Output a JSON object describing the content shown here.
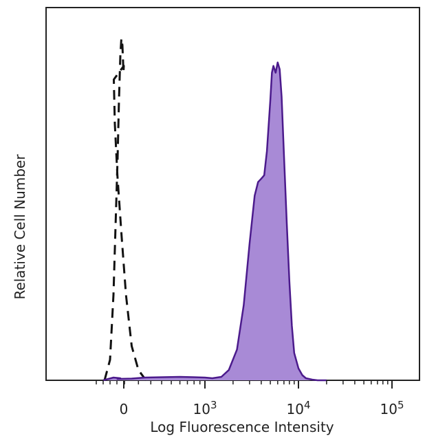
{
  "chart_data": {
    "type": "area",
    "xlabel": "Log Fluorescence Intensity",
    "ylabel": "Relative Cell Number",
    "x_scale": "biexponential",
    "xlim": [
      -500,
      200000
    ],
    "ylim": [
      0,
      1
    ],
    "grid": false,
    "legend": "none",
    "x_ticks": [
      {
        "value": 0,
        "label": "0",
        "exp": ""
      },
      {
        "value": 1000,
        "label": "10",
        "exp": "3"
      },
      {
        "value": 10000,
        "label": "10",
        "exp": "4"
      },
      {
        "value": 100000,
        "label": "10",
        "exp": "5"
      }
    ],
    "series": [
      {
        "style": "dashed",
        "color": "#111111",
        "fill": "none",
        "x": [
          -280,
          -200,
          -150,
          -120,
          -90,
          -70,
          -50,
          -35,
          -20,
          -10,
          -5,
          0,
          10,
          30,
          50,
          80,
          110,
          150,
          200,
          260
        ],
        "y": [
          0.0,
          0.06,
          0.25,
          0.45,
          0.65,
          0.82,
          0.95,
          1.0,
          0.98,
          0.93,
          0.9,
          0.92,
          0.88,
          0.75,
          0.6,
          0.42,
          0.25,
          0.1,
          0.03,
          0.0
        ]
      },
      {
        "style": "solid",
        "color": "#4b1a8c",
        "fill": "#a88ad6",
        "x": [
          -300,
          -150,
          -50,
          50,
          150,
          250,
          400,
          600,
          800,
          1000,
          1200,
          1500,
          1800,
          2200,
          2600,
          3000,
          3400,
          3700,
          4000,
          4300,
          4600,
          5000,
          5200,
          5400,
          5700,
          6000,
          6300,
          6600,
          7000,
          7500,
          8000,
          8500,
          9000,
          10000,
          11000,
          12000,
          14000,
          16000,
          20000
        ],
        "y": [
          0.0,
          0.008,
          0.006,
          0.004,
          0.005,
          0.008,
          0.009,
          0.01,
          0.009,
          0.008,
          0.006,
          0.01,
          0.03,
          0.09,
          0.22,
          0.4,
          0.54,
          0.58,
          0.59,
          0.6,
          0.67,
          0.82,
          0.9,
          0.92,
          0.9,
          0.93,
          0.91,
          0.83,
          0.66,
          0.46,
          0.29,
          0.16,
          0.08,
          0.035,
          0.015,
          0.006,
          0.002,
          0.0,
          0.0
        ]
      }
    ]
  }
}
